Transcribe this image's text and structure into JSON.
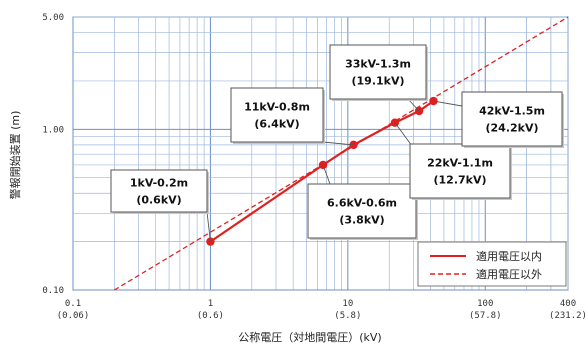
{
  "chart_data": {
    "type": "line",
    "xlabel": "公称電圧（対地間電圧）(kV)",
    "ylabel": "警報開始装置 (m)",
    "x_scale": "log",
    "y_scale": "log",
    "xlim": [
      0.1,
      400
    ],
    "ylim": [
      0.1,
      5.0
    ],
    "x_ticks": [
      {
        "value": 0.1,
        "label": "0.1",
        "sublabel": "(0.06)"
      },
      {
        "value": 1,
        "label": "1",
        "sublabel": "(0.6)"
      },
      {
        "value": 10,
        "label": "10",
        "sublabel": "(5.8)"
      },
      {
        "value": 100,
        "label": "100",
        "sublabel": "(57.8)"
      },
      {
        "value": 400,
        "label": "400",
        "sublabel": "(231.2)"
      }
    ],
    "y_ticks": [
      {
        "value": 0.1,
        "label": "0.10"
      },
      {
        "value": 1.0,
        "label": "1.00"
      },
      {
        "value": 5.0,
        "label": "5.00"
      }
    ],
    "grid": true,
    "legend_position": "bottom-right",
    "series": [
      {
        "name": "適用電圧以内",
        "style": "solid",
        "color": "#e02020",
        "points": [
          {
            "x": 1,
            "y": 0.2
          },
          {
            "x": 6.6,
            "y": 0.6
          },
          {
            "x": 11,
            "y": 0.8
          },
          {
            "x": 22,
            "y": 1.1
          },
          {
            "x": 33,
            "y": 1.3
          },
          {
            "x": 42,
            "y": 1.5
          }
        ]
      },
      {
        "name": "適用電圧以外",
        "style": "dashed",
        "color": "#e02020",
        "points": [
          {
            "x": 0.2,
            "y": 0.1
          },
          {
            "x": 400,
            "y": 5.0
          }
        ]
      }
    ],
    "annotations": [
      {
        "point": 0,
        "lines": [
          "1kV-0.2m",
          "(0.6kV)"
        ]
      },
      {
        "point": 1,
        "lines": [
          "6.6kV-0.6m",
          "(3.8kV)"
        ]
      },
      {
        "point": 2,
        "lines": [
          "11kV-0.8m",
          "(6.4kV)"
        ]
      },
      {
        "point": 3,
        "lines": [
          "22kV-1.1m",
          "(12.7kV)"
        ]
      },
      {
        "point": 4,
        "lines": [
          "33kV-1.3m",
          "(19.1kV)"
        ]
      },
      {
        "point": 5,
        "lines": [
          "42kV-1.5m",
          "(24.2kV)"
        ]
      }
    ]
  }
}
